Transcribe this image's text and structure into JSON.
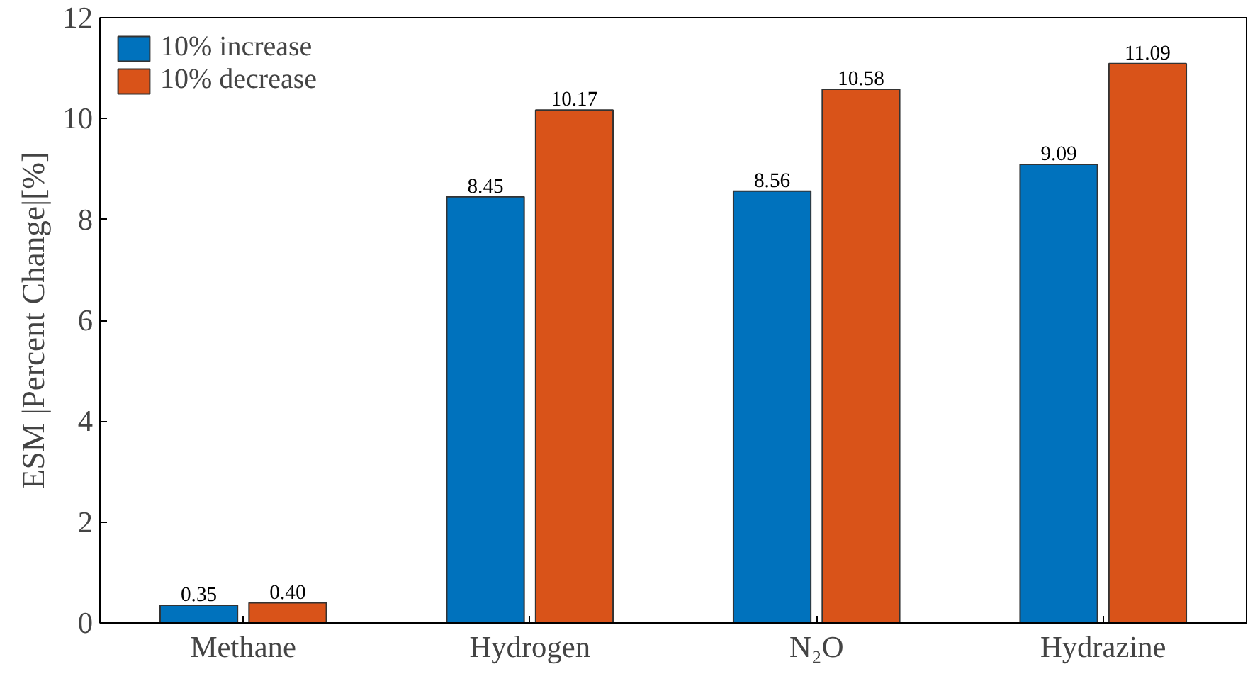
{
  "chart_data": {
    "type": "bar",
    "ylabel": "ESM |Percent Change|[%]",
    "categories": [
      "Methane",
      "Hydrogen",
      "N₂O",
      "Hydrazine"
    ],
    "series": [
      {
        "name": "10% increase",
        "color": "#0072bd",
        "values": [
          0.35,
          8.45,
          8.56,
          9.09
        ],
        "value_labels": [
          "0.35",
          "8.45",
          "8.56",
          "9.09"
        ]
      },
      {
        "name": "10% decrease",
        "color": "#d95319",
        "values": [
          0.4,
          10.17,
          10.58,
          11.09
        ],
        "value_labels": [
          "0.40",
          "10.17",
          "10.58",
          "11.09"
        ]
      }
    ],
    "ylim": [
      0,
      12
    ],
    "yticks": [
      0,
      2,
      4,
      6,
      8,
      10,
      12
    ],
    "grid": false,
    "legend": "top left"
  }
}
